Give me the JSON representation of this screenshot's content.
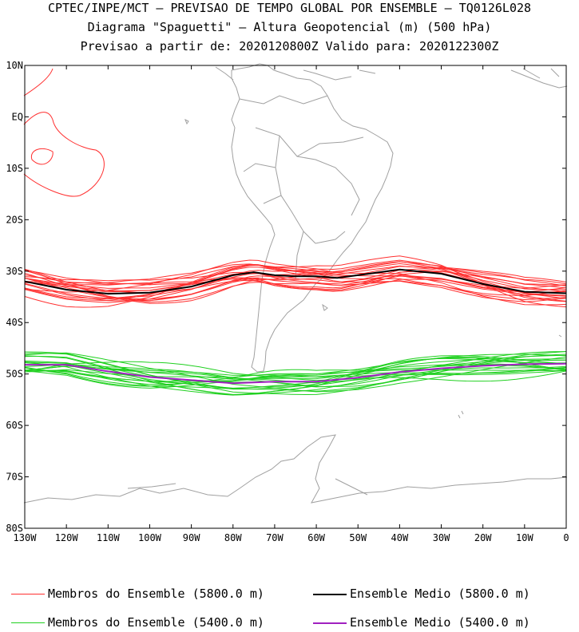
{
  "titles": {
    "line1": "CPTEC/INPE/MCT – PREVISAO DE TEMPO GLOBAL POR ENSEMBLE – TQ0126L028",
    "line2": "Diagrama \"Spaguetti\" – Altura Geopotencial (m) (500 hPa)",
    "line3": "Previsao a partir de: 2020120800Z  Valido para: 2020122300Z"
  },
  "axes": {
    "lat_labels": [
      "10N",
      "EQ",
      "10S",
      "20S",
      "30S",
      "40S",
      "50S",
      "60S",
      "70S",
      "80S"
    ],
    "lon_labels": [
      "130W",
      "120W",
      "110W",
      "100W",
      "90W",
      "80W",
      "70W",
      "60W",
      "50W",
      "40W",
      "30W",
      "20W",
      "10W",
      "0"
    ]
  },
  "legend": {
    "members_5800": "Membros do Ensemble (5800.0 m)",
    "mean_5800": "Ensemble Medio (5800.0 m)",
    "members_5400": "Membros do Ensemble (5400.0 m)",
    "mean_5400": "Ensemble Medio (5400.0 m)"
  },
  "colors": {
    "members_5800": "#ff3030",
    "mean_5800": "#000000",
    "members_5400": "#20d020",
    "mean_5400": "#a020c0",
    "coastline": "#a0a0a0"
  },
  "chart_data": {
    "type": "line",
    "xlim": [
      -130,
      0
    ],
    "ylim": [
      -80,
      10
    ],
    "mean_5800": [
      [
        -130,
        -32
      ],
      [
        -120,
        -33.6
      ],
      [
        -110,
        -34.4
      ],
      [
        -100,
        -34.2
      ],
      [
        -90,
        -33
      ],
      [
        -80,
        -30.8
      ],
      [
        -75,
        -30.2
      ],
      [
        -70,
        -30.8
      ],
      [
        -65,
        -31
      ],
      [
        -60,
        -31
      ],
      [
        -55,
        -31.3
      ],
      [
        -50,
        -30.8
      ],
      [
        -40,
        -29.7
      ],
      [
        -30,
        -30.5
      ],
      [
        -20,
        -32.5
      ],
      [
        -10,
        -34
      ],
      [
        0,
        -34.3
      ]
    ],
    "mean_5400": [
      [
        -130,
        -48.2
      ],
      [
        -120,
        -48.2
      ],
      [
        -110,
        -49.5
      ],
      [
        -100,
        -50.6
      ],
      [
        -90,
        -51.2
      ],
      [
        -80,
        -51.8
      ],
      [
        -70,
        -51.5
      ],
      [
        -60,
        -51.5
      ],
      [
        -50,
        -50.7
      ],
      [
        -40,
        -49.6
      ],
      [
        -30,
        -48.9
      ],
      [
        -20,
        -48.4
      ],
      [
        -10,
        -48.1
      ],
      [
        0,
        -48
      ]
    ]
  }
}
